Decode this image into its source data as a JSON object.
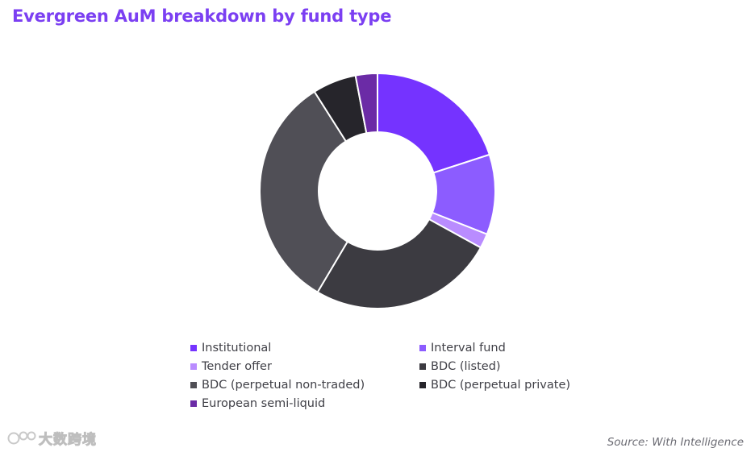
{
  "chart_data": {
    "type": "pie",
    "style": "donut",
    "title": "Evergreen AuM breakdown by fund type",
    "source": "Source: With Intelligence",
    "legend_position": "bottom",
    "series": [
      {
        "name": "Institutional",
        "value": 20.0,
        "color": "#7533ff"
      },
      {
        "name": "Interval fund",
        "value": 11.0,
        "color": "#8c5cff"
      },
      {
        "name": "Tender offer",
        "value": 2.0,
        "color": "#b98cff"
      },
      {
        "name": "BDC (listed)",
        "value": 25.5,
        "color": "#3c3b41"
      },
      {
        "name": "BDC (perpetual non-traded)",
        "value": 32.5,
        "color": "#504f56"
      },
      {
        "name": "BDC (perpetual private)",
        "value": 6.0,
        "color": "#26252b"
      },
      {
        "name": "European semi-liquid",
        "value": 3.0,
        "color": "#6b2ba6"
      }
    ]
  },
  "watermark": {
    "text": "大数跨境"
  }
}
